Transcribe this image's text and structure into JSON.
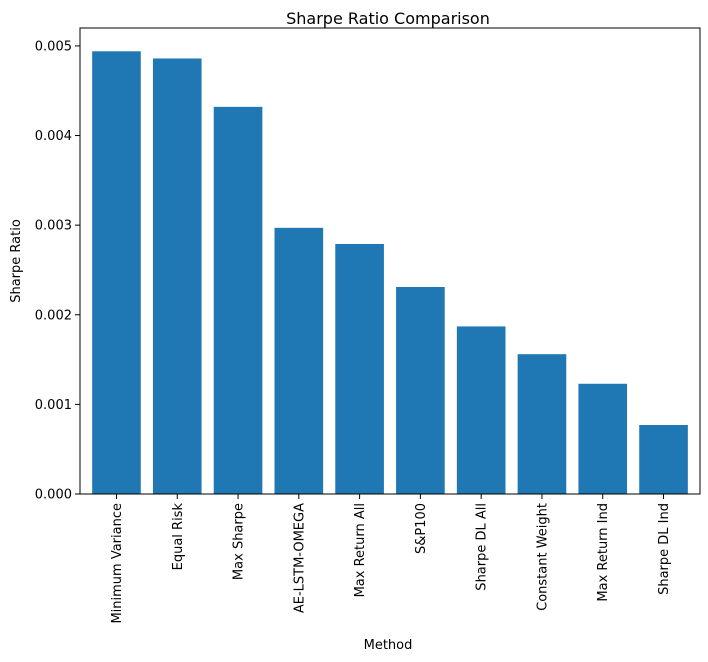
{
  "chart_data": {
    "type": "bar",
    "title": "Sharpe Ratio Comparison",
    "xlabel": "Method",
    "ylabel": "Sharpe Ratio",
    "categories": [
      "Minimum Variance",
      "Equal Risk",
      "Max Sharpe",
      "AE-LSTM-OMEGA",
      "Max Return All",
      "S&P100",
      "Sharpe DL All",
      "Constant Weight",
      "Max Return Ind",
      "Sharpe DL Ind"
    ],
    "values": [
      0.00494,
      0.00486,
      0.00432,
      0.00297,
      0.00279,
      0.00231,
      0.00187,
      0.00156,
      0.00123,
      0.00077
    ],
    "ylim": [
      0,
      0.0052
    ],
    "yticks": [
      0,
      0.001,
      0.002,
      0.003,
      0.004,
      0.005
    ],
    "ytick_labels": [
      "0.000",
      "0.001",
      "0.002",
      "0.003",
      "0.004",
      "0.005"
    ],
    "bar_color": "#1f77b4",
    "grid": false,
    "legend": "none"
  }
}
